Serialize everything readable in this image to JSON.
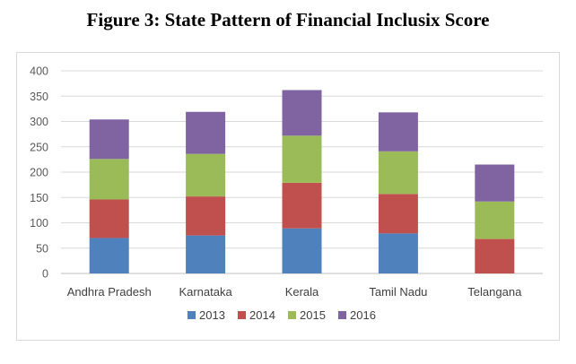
{
  "figure_title": "Figure 3: State Pattern of Financial Inclusix Score",
  "chart_data": {
    "type": "bar",
    "stacked": true,
    "categories": [
      "Andhra Pradesh",
      "Karnataka",
      "Kerala",
      "Tamil Nadu",
      "Telangana"
    ],
    "series": [
      {
        "name": "2013",
        "color": "#4f81bd",
        "values": [
          70,
          75,
          89,
          79,
          0
        ]
      },
      {
        "name": "2014",
        "color": "#c0504d",
        "values": [
          76,
          77,
          90,
          78,
          68
        ]
      },
      {
        "name": "2015",
        "color": "#9bbb59",
        "values": [
          80,
          84,
          93,
          84,
          74
        ]
      },
      {
        "name": "2016",
        "color": "#8064a2",
        "values": [
          78,
          83,
          90,
          77,
          73
        ]
      }
    ],
    "ylim": [
      0,
      400
    ],
    "yticks": [
      0,
      50,
      100,
      150,
      200,
      250,
      300,
      350,
      400
    ],
    "grid": true,
    "legend": "bottom"
  }
}
